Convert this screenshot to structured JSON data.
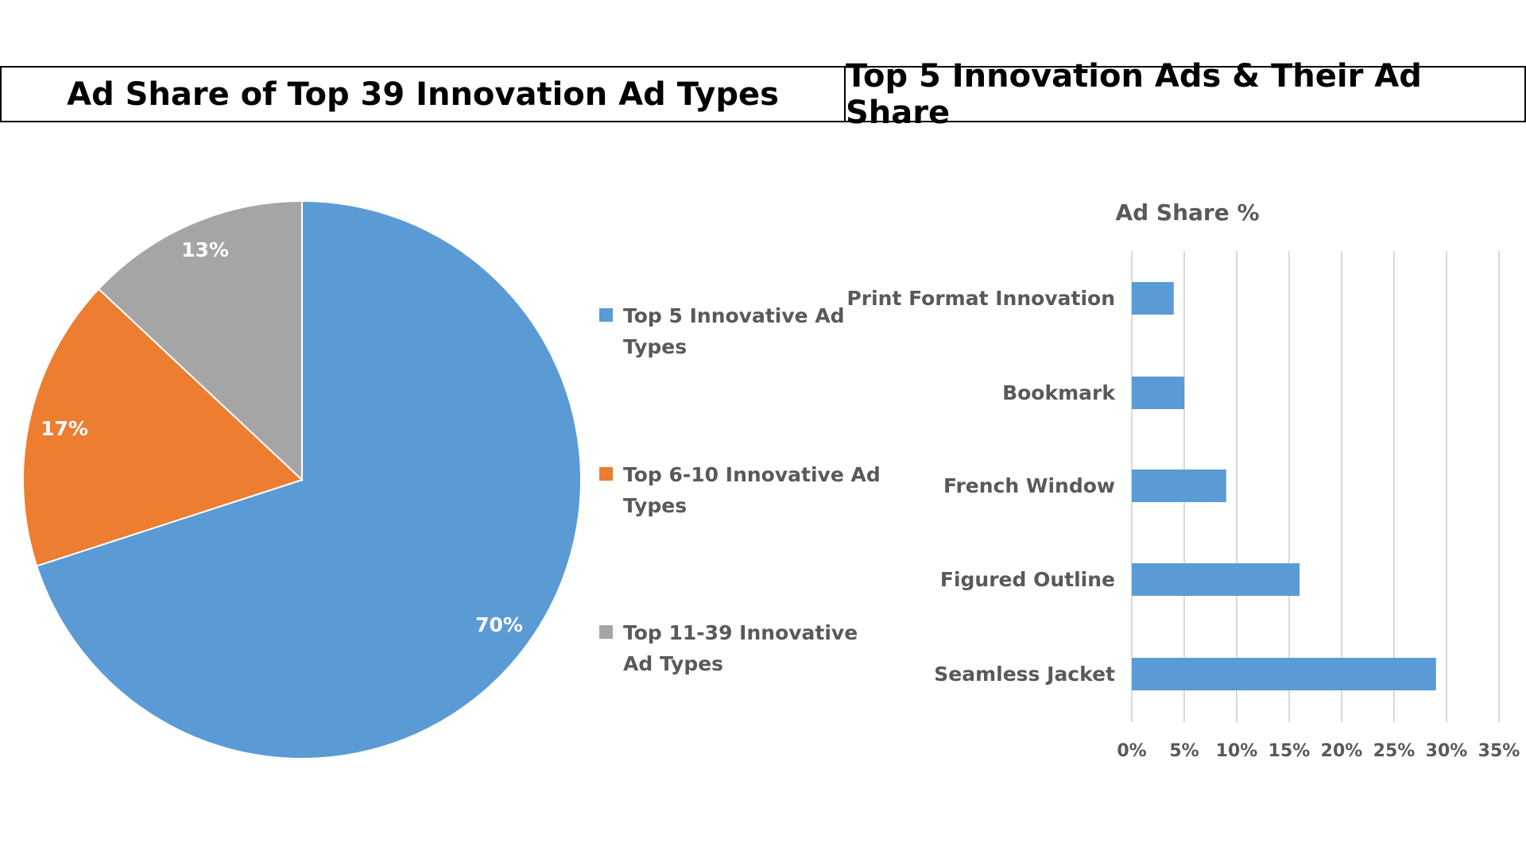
{
  "headers": {
    "left": "Ad Share of Top 39 Innovation Ad Types",
    "right": "Top 5 Innovation Ads & Their Ad Share"
  },
  "chart_data": [
    {
      "type": "pie",
      "labels": [
        "Top 5 Innovative Ad Types",
        "Top 6-10 Innovative Ad Types",
        "Top 11-39 Innovative Ad Types"
      ],
      "legend_lines": [
        [
          "Top 5 Innovative Ad",
          "Types"
        ],
        [
          "Top 6-10 Innovative Ad",
          "Types"
        ],
        [
          "Top 11-39 Innovative",
          "Ad Types"
        ]
      ],
      "values": [
        70,
        17,
        13
      ],
      "data_labels": [
        "70%",
        "17%",
        "13%"
      ],
      "colors": [
        "#5B9BD5",
        "#ED7D31",
        "#A5A5A5"
      ],
      "legend_position": "right"
    },
    {
      "type": "bar",
      "orientation": "horizontal",
      "title": "Ad Share %",
      "categories": [
        "Print Format Innovation",
        "Bookmark",
        "French Window",
        "Figured Outline",
        "Seamless Jacket"
      ],
      "values": [
        4,
        5,
        9,
        16,
        29
      ],
      "xlim": [
        0,
        35
      ],
      "xticks": [
        "0%",
        "5%",
        "10%",
        "15%",
        "20%",
        "25%",
        "30%",
        "35%"
      ],
      "grid": "vertical",
      "color": "#5B9BD5"
    }
  ]
}
